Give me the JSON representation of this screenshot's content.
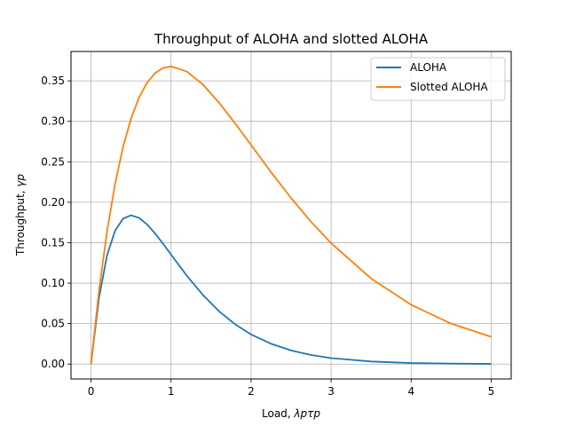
{
  "chart_data": {
    "type": "line",
    "title": "Throughput of ALOHA and slotted ALOHA",
    "xlabel": {
      "prefix": "Load, ",
      "math": "λpτp"
    },
    "ylabel": {
      "prefix": "Throughput, ",
      "math": "γp"
    },
    "xlim": [
      -0.25,
      5.25
    ],
    "ylim": [
      -0.0184,
      0.3863
    ],
    "x_ticks": [
      0,
      1,
      2,
      3,
      4,
      5
    ],
    "x_tick_labels": [
      "0",
      "1",
      "2",
      "3",
      "4",
      "5"
    ],
    "y_ticks": [
      0.0,
      0.05,
      0.1,
      0.15,
      0.2,
      0.25,
      0.3,
      0.35
    ],
    "y_tick_labels": [
      "0.00",
      "0.05",
      "0.10",
      "0.15",
      "0.20",
      "0.25",
      "0.30",
      "0.35"
    ],
    "grid": true,
    "legend_position": "top-right",
    "series": [
      {
        "name": "ALOHA",
        "color": "#1f77b4",
        "x": [
          0,
          0.1,
          0.2,
          0.3,
          0.4,
          0.5,
          0.6,
          0.7,
          0.8,
          0.9,
          1.0,
          1.2,
          1.4,
          1.6,
          1.8,
          2.0,
          2.25,
          2.5,
          2.75,
          3.0,
          3.5,
          4.0,
          4.5,
          5.0
        ],
        "y": [
          0,
          0.0819,
          0.1341,
          0.1646,
          0.1797,
          0.1839,
          0.1807,
          0.1726,
          0.1615,
          0.1488,
          0.1353,
          0.1089,
          0.0852,
          0.0652,
          0.0492,
          0.0366,
          0.0251,
          0.0168,
          0.0112,
          0.0074,
          0.0032,
          0.0013,
          0.0006,
          0.0002
        ]
      },
      {
        "name": "Slotted ALOHA",
        "color": "#ff7f0e",
        "x": [
          0,
          0.1,
          0.2,
          0.3,
          0.4,
          0.5,
          0.6,
          0.7,
          0.8,
          0.9,
          1.0,
          1.2,
          1.4,
          1.6,
          1.8,
          2.0,
          2.25,
          2.5,
          2.75,
          3.0,
          3.5,
          4.0,
          4.5,
          5.0
        ],
        "y": [
          0,
          0.0905,
          0.1637,
          0.2222,
          0.2681,
          0.3033,
          0.3293,
          0.3476,
          0.3595,
          0.3659,
          0.3679,
          0.3614,
          0.3452,
          0.323,
          0.2975,
          0.2707,
          0.2371,
          0.2052,
          0.1758,
          0.1494,
          0.1057,
          0.0733,
          0.05,
          0.0337
        ]
      }
    ]
  }
}
